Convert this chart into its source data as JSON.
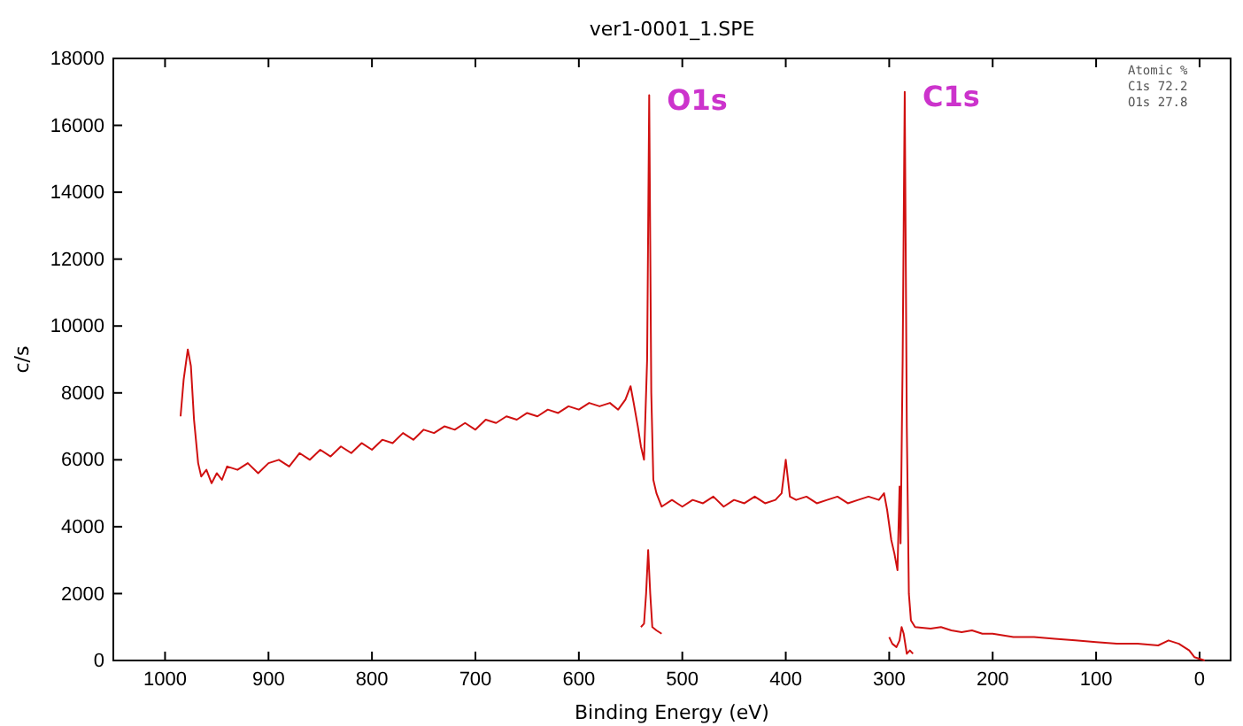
{
  "chart_data": {
    "type": "line",
    "title": "ver1-0001_1.SPE",
    "xlabel": "Binding Energy (eV)",
    "ylabel": "c/s",
    "xlim": [
      1050,
      -30
    ],
    "xticks": [
      1000,
      900,
      800,
      700,
      600,
      500,
      400,
      300,
      200,
      100,
      0
    ],
    "ylim": [
      0,
      18000
    ],
    "yticks": [
      0,
      2000,
      4000,
      6000,
      8000,
      10000,
      12000,
      14000,
      16000,
      18000
    ],
    "grid": false,
    "marker": "none",
    "line_style": "solid",
    "annotations": [
      {
        "text": "O1s",
        "x": 532,
        "y": 16900
      },
      {
        "text": "C1s",
        "x": 285,
        "y": 17000
      },
      "Atomic %",
      "C1s   72.2",
      "O1s   27.8"
    ],
    "series": [
      {
        "color": "#d01010",
        "x": [
          985,
          982,
          978,
          975,
          972,
          968,
          965,
          960,
          955,
          950,
          945,
          940,
          930,
          920,
          910,
          900,
          890,
          880,
          870,
          860,
          850,
          840,
          830,
          820,
          810,
          800,
          790,
          780,
          770,
          760,
          750,
          740,
          730,
          720,
          710,
          700,
          690,
          680,
          670,
          660,
          650,
          640,
          630,
          620,
          610,
          600,
          590,
          580,
          570,
          562,
          555,
          550,
          547,
          543,
          540,
          537,
          534,
          532,
          530,
          528,
          525,
          520,
          510,
          500,
          490,
          480,
          470,
          460,
          450,
          440,
          430,
          420,
          410,
          404,
          400,
          396,
          390,
          380,
          370,
          360,
          350,
          340,
          330,
          320,
          310,
          305,
          302,
          298,
          295,
          292,
          290,
          289,
          287,
          285,
          283,
          281,
          279,
          275,
          260,
          250,
          240,
          230,
          220,
          210,
          200,
          180,
          160,
          140,
          120,
          100,
          80,
          60,
          40,
          30,
          20,
          10,
          5,
          -5
        ],
        "values": [
          7300,
          8400,
          9300,
          8800,
          7200,
          5900,
          5500,
          5700,
          5300,
          5600,
          5400,
          5800,
          5700,
          5900,
          5600,
          5900,
          6000,
          5800,
          6200,
          6000,
          6300,
          6100,
          6400,
          6200,
          6500,
          6300,
          6600,
          6500,
          6800,
          6600,
          6900,
          6800,
          7000,
          6900,
          7100,
          6900,
          7200,
          7100,
          7300,
          7200,
          7400,
          7300,
          7500,
          7400,
          7600,
          7500,
          7700,
          7600,
          7700,
          7500,
          7800,
          8200,
          7700,
          7000,
          6400,
          6000,
          9000,
          16900,
          8000,
          5400,
          5000,
          4600,
          4800,
          4600,
          4800,
          4700,
          4900,
          4600,
          4800,
          4700,
          4900,
          4700,
          4800,
          5000,
          6000,
          4900,
          4800,
          4900,
          4700,
          4800,
          4900,
          4700,
          4800,
          4900,
          4800,
          5000,
          4500,
          3600,
          3200,
          2700,
          5200,
          3500,
          9000,
          17000,
          7000,
          2000,
          1200,
          1000,
          950,
          1000,
          900,
          850,
          900,
          800,
          800,
          700,
          700,
          650,
          600,
          550,
          500,
          500,
          450,
          600,
          500,
          300,
          100,
          0
        ]
      },
      {
        "color": "#d01010",
        "x": [
          540,
          537,
          535,
          533,
          531,
          529,
          525,
          520,
          410,
          300,
          297,
          293,
          290,
          288,
          286,
          283,
          280,
          277
        ],
        "values": [
          1000,
          1100,
          2000,
          3300,
          2000,
          1000,
          900,
          800,
          null,
          700,
          500,
          400,
          600,
          1000,
          800,
          200,
          300,
          200
        ]
      }
    ]
  }
}
